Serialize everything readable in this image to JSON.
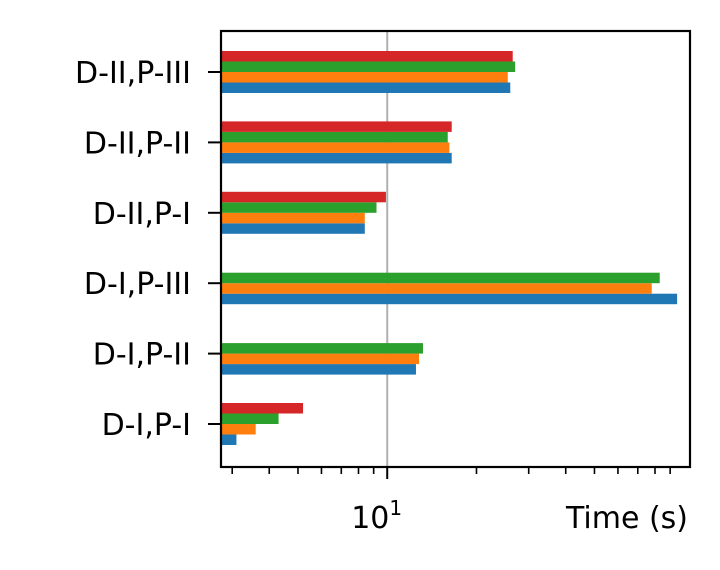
{
  "chart_data": {
    "type": "bar",
    "orientation": "horizontal",
    "categories": [
      "D-I,P-I",
      "D-I,P-II",
      "D-I,P-III",
      "D-II,P-I",
      "D-II,P-II",
      "D-II,P-III"
    ],
    "series": [
      {
        "color": "#1f77b4",
        "values": [
          3.1,
          12.5,
          95,
          8.4,
          16.5,
          26
        ]
      },
      {
        "color": "#ff7f0e",
        "values": [
          3.6,
          12.8,
          78,
          8.4,
          16.2,
          25.5
        ]
      },
      {
        "color": "#2ca02c",
        "values": [
          4.3,
          13.2,
          83,
          9.2,
          16.0,
          27
        ]
      },
      {
        "color": "#d62728",
        "values": [
          5.2,
          null,
          null,
          9.9,
          16.5,
          26.5
        ]
      }
    ],
    "xscale": "log",
    "xlim": [
      2.75,
      105
    ],
    "xticks": [
      {
        "value": 10,
        "base": "10",
        "exponent": "1"
      }
    ],
    "xlabel": "Time (s)",
    "grid": "x-major"
  }
}
